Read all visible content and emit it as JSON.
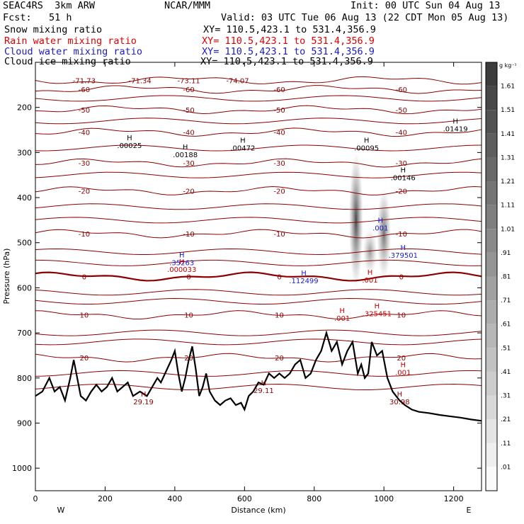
{
  "header": {
    "model": "SEAC4RS  3km ARW",
    "org": "NCAR/MMM",
    "init": "Init: 00 UTC Sun 04 Aug 13",
    "fcst": "Fcst:   51 h",
    "valid": "Valid: 03 UTC Tue 06 Aug 13 (22 CDT Mon 05 Aug 13)",
    "fields": [
      {
        "name": "Snow mixing ratio",
        "xy": "XY= 110.5,423.1 to 531.4,356.9",
        "color": "#000000"
      },
      {
        "name": "Rain water mixing ratio",
        "xy": "XY= 110.5,423.1 to 531.4,356.9",
        "color": "#e00000"
      },
      {
        "name": "Cloud water mixing ratio",
        "xy": "XY= 110.5,423.1 to 531.4,356.9",
        "color": "#1a1acc"
      },
      {
        "name": "Cloud ice mixing ratio",
        "xy": "XY= 110.5,423.1 to 531.4,356.9",
        "color": "#000000"
      }
    ]
  },
  "colorbar": {
    "unit": "g kg⁻¹",
    "ticks": [
      "1.61",
      "1.51",
      "1.41",
      "1.31",
      "1.21",
      "1.11",
      "1.01",
      ".91",
      ".81",
      ".71",
      ".61",
      ".51",
      ".41",
      ".31",
      ".21",
      ".11",
      ".01"
    ]
  },
  "chart_data": {
    "type": "contour",
    "xlabel": "Distance (km)",
    "ylabel": "Pressure (hPa)",
    "xlim": [
      0,
      1280
    ],
    "ylim": [
      1050,
      100
    ],
    "x_ticks": [
      0,
      200,
      400,
      600,
      800,
      1000,
      1200
    ],
    "y_ticks": [
      200,
      300,
      400,
      500,
      600,
      700,
      800,
      900,
      1000
    ],
    "x_end_labels": {
      "left": "W",
      "right": "E"
    },
    "terrain_surface_hPa": [
      [
        0,
        840
      ],
      [
        20,
        830
      ],
      [
        40,
        800
      ],
      [
        55,
        830
      ],
      [
        70,
        820
      ],
      [
        85,
        850
      ],
      [
        100,
        800
      ],
      [
        110,
        760
      ],
      [
        120,
        800
      ],
      [
        130,
        840
      ],
      [
        145,
        850
      ],
      [
        160,
        830
      ],
      [
        175,
        815
      ],
      [
        190,
        830
      ],
      [
        205,
        820
      ],
      [
        220,
        800
      ],
      [
        235,
        830
      ],
      [
        250,
        820
      ],
      [
        265,
        810
      ],
      [
        280,
        840
      ],
      [
        300,
        830
      ],
      [
        320,
        840
      ],
      [
        335,
        820
      ],
      [
        350,
        800
      ],
      [
        360,
        810
      ],
      [
        375,
        785
      ],
      [
        390,
        760
      ],
      [
        400,
        740
      ],
      [
        410,
        790
      ],
      [
        420,
        830
      ],
      [
        430,
        800
      ],
      [
        440,
        760
      ],
      [
        450,
        730
      ],
      [
        460,
        780
      ],
      [
        470,
        840
      ],
      [
        480,
        820
      ],
      [
        490,
        790
      ],
      [
        500,
        830
      ],
      [
        515,
        850
      ],
      [
        530,
        860
      ],
      [
        545,
        850
      ],
      [
        560,
        845
      ],
      [
        575,
        860
      ],
      [
        590,
        855
      ],
      [
        600,
        870
      ],
      [
        612,
        840
      ],
      [
        625,
        830
      ],
      [
        640,
        810
      ],
      [
        655,
        815
      ],
      [
        670,
        790
      ],
      [
        685,
        800
      ],
      [
        700,
        790
      ],
      [
        715,
        800
      ],
      [
        730,
        790
      ],
      [
        745,
        770
      ],
      [
        760,
        760
      ],
      [
        775,
        800
      ],
      [
        790,
        790
      ],
      [
        805,
        760
      ],
      [
        820,
        740
      ],
      [
        835,
        700
      ],
      [
        850,
        740
      ],
      [
        865,
        720
      ],
      [
        880,
        770
      ],
      [
        895,
        740
      ],
      [
        910,
        720
      ],
      [
        925,
        790
      ],
      [
        935,
        770
      ],
      [
        945,
        800
      ],
      [
        955,
        790
      ],
      [
        965,
        720
      ],
      [
        980,
        750
      ],
      [
        995,
        740
      ],
      [
        1010,
        800
      ],
      [
        1025,
        830
      ],
      [
        1045,
        850
      ],
      [
        1060,
        860
      ],
      [
        1080,
        870
      ],
      [
        1100,
        875
      ],
      [
        1130,
        878
      ],
      [
        1160,
        882
      ],
      [
        1190,
        885
      ],
      [
        1220,
        888
      ],
      [
        1250,
        892
      ],
      [
        1280,
        895
      ]
    ],
    "temperature_isotherms_C": [
      {
        "value": "-71.73",
        "p": 140
      },
      {
        "value": "-71.34",
        "p": 140
      },
      {
        "value": "-73.11",
        "p": 140
      },
      {
        "value": "-74.07",
        "p": 140
      },
      {
        "value": -60,
        "p": 160
      },
      {
        "value": -50,
        "p": 205
      },
      {
        "value": -40,
        "p": 255
      },
      {
        "value": -30,
        "p": 323
      },
      {
        "value": -20,
        "p": 385
      },
      {
        "value": -10,
        "p": 480
      },
      {
        "value": 0,
        "p": 575
      },
      {
        "value": 10,
        "p": 660
      },
      {
        "value": 20,
        "p": 755
      }
    ],
    "maxima_labels": [
      {
        "x": 270,
        "p": 287,
        "text": ".00025",
        "field": "snow"
      },
      {
        "x": 430,
        "p": 307,
        "text": ".00188",
        "field": "snow"
      },
      {
        "x": 595,
        "p": 292,
        "text": ".00472",
        "field": "snow"
      },
      {
        "x": 950,
        "p": 292,
        "text": ".00095",
        "field": "snow"
      },
      {
        "x": 1055,
        "p": 358,
        "text": ".00146",
        "field": "snow"
      },
      {
        "x": 1205,
        "p": 250,
        "text": ".01419",
        "field": "snow"
      },
      {
        "x": 420,
        "p": 547,
        "text": ".35263",
        "field": "cloud_water"
      },
      {
        "x": 770,
        "p": 587,
        "text": ".112499",
        "field": "cloud_water"
      },
      {
        "x": 1055,
        "p": 530,
        "text": ".379501",
        "field": "cloud_water"
      },
      {
        "x": 990,
        "p": 470,
        "text": ".001",
        "field": "cloud_water"
      },
      {
        "x": 420,
        "p": 562,
        "text": ".000033",
        "field": "rain"
      },
      {
        "x": 960,
        "p": 585,
        "text": ".001",
        "field": "rain"
      },
      {
        "x": 880,
        "p": 670,
        "text": ".001",
        "field": "rain"
      },
      {
        "x": 980,
        "p": 660,
        "text": ".325451",
        "field": "rain"
      },
      {
        "x": 1055,
        "p": 790,
        "text": ".001",
        "field": "rain"
      },
      {
        "x": 1045,
        "p": 855,
        "text": "30.98",
        "field": "surface"
      },
      {
        "x": 310,
        "p": 855,
        "text": "29.19",
        "field": "surface"
      },
      {
        "x": 655,
        "p": 830,
        "text": "29.11",
        "field": "surface"
      }
    ],
    "shaded_snow_columns": [
      {
        "x": 920,
        "p_top": 300,
        "p_bottom": 600,
        "max": 0.9
      },
      {
        "x": 1000,
        "p_top": 380,
        "p_bottom": 580,
        "max": 0.7
      },
      {
        "x": 960,
        "p_top": 470,
        "p_bottom": 570,
        "max": 0.5
      }
    ]
  }
}
